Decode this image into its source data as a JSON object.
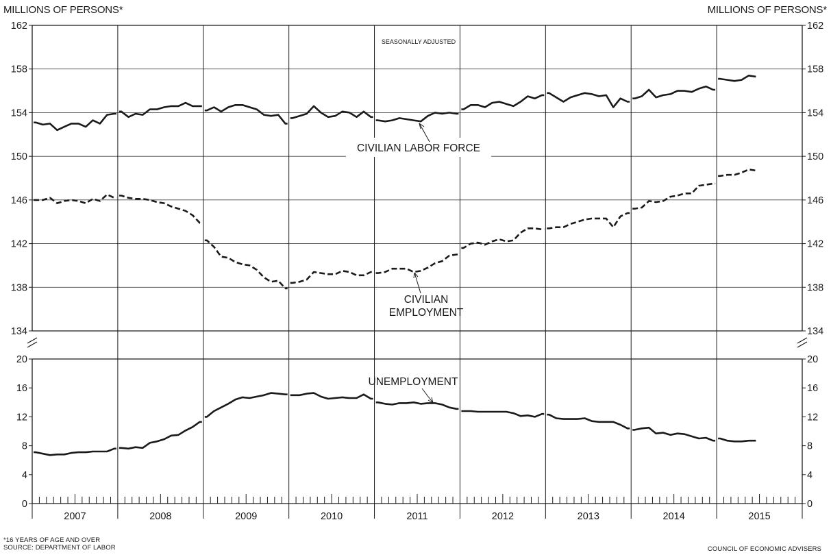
{
  "header": {
    "left_units": "MILLIONS OF PERSONS*",
    "right_units": "MILLIONS OF PERSONS*"
  },
  "footer": {
    "note": "*16 YEARS OF AGE AND OVER",
    "source": "SOURCE: DEPARTMENT OF LABOR",
    "credit": "COUNCIL OF ECONOMIC ADVISERS"
  },
  "chart_data": [
    {
      "type": "line",
      "annotation": "SEASONALLY ADJUSTED",
      "ylim": [
        134,
        162
      ],
      "yticks": [
        134,
        138,
        142,
        146,
        150,
        154,
        158,
        162
      ],
      "x_categories": [
        "2007",
        "2008",
        "2009",
        "2010",
        "2011",
        "2012",
        "2013",
        "2014",
        "2015"
      ],
      "grid": "horizontal",
      "series": [
        {
          "name": "CIVILIAN LABOR FORCE",
          "style": "solid",
          "x": [
            "2007-01",
            "2007-02",
            "2007-03",
            "2007-04",
            "2007-05",
            "2007-06",
            "2007-07",
            "2007-08",
            "2007-09",
            "2007-10",
            "2007-11",
            "2007-12",
            "2008-01",
            "2008-02",
            "2008-03",
            "2008-04",
            "2008-05",
            "2008-06",
            "2008-07",
            "2008-08",
            "2008-09",
            "2008-10",
            "2008-11",
            "2008-12",
            "2009-01",
            "2009-02",
            "2009-03",
            "2009-04",
            "2009-05",
            "2009-06",
            "2009-07",
            "2009-08",
            "2009-09",
            "2009-10",
            "2009-11",
            "2009-12",
            "2010-01",
            "2010-02",
            "2010-03",
            "2010-04",
            "2010-05",
            "2010-06",
            "2010-07",
            "2010-08",
            "2010-09",
            "2010-10",
            "2010-11",
            "2010-12",
            "2011-01",
            "2011-02",
            "2011-03",
            "2011-04",
            "2011-05",
            "2011-06",
            "2011-07",
            "2011-08",
            "2011-09",
            "2011-10",
            "2011-11",
            "2011-12",
            "2012-01",
            "2012-02",
            "2012-03",
            "2012-04",
            "2012-05",
            "2012-06",
            "2012-07",
            "2012-08",
            "2012-09",
            "2012-10",
            "2012-11",
            "2012-12",
            "2013-01",
            "2013-02",
            "2013-03",
            "2013-04",
            "2013-05",
            "2013-06",
            "2013-07",
            "2013-08",
            "2013-09",
            "2013-10",
            "2013-11",
            "2013-12",
            "2014-01",
            "2014-02",
            "2014-03",
            "2014-04",
            "2014-05",
            "2014-06",
            "2014-07",
            "2014-08",
            "2014-09",
            "2014-10",
            "2014-11",
            "2014-12",
            "2015-01",
            "2015-02",
            "2015-03",
            "2015-04",
            "2015-05",
            "2015-06"
          ],
          "values": [
            153.1,
            152.9,
            153.0,
            152.4,
            152.7,
            153.0,
            153.0,
            152.7,
            153.3,
            153.0,
            153.8,
            153.9,
            154.1,
            153.6,
            153.9,
            153.8,
            154.3,
            154.3,
            154.5,
            154.6,
            154.6,
            154.9,
            154.6,
            154.6,
            154.2,
            154.5,
            154.1,
            154.5,
            154.7,
            154.7,
            154.5,
            154.3,
            153.8,
            153.7,
            153.8,
            153.0,
            153.5,
            153.7,
            153.9,
            154.6,
            154.0,
            153.6,
            153.7,
            154.1,
            154.0,
            153.6,
            154.1,
            153.6,
            153.3,
            153.2,
            153.3,
            153.5,
            153.4,
            153.3,
            153.2,
            153.7,
            154.0,
            153.9,
            154.0,
            153.9,
            154.3,
            154.7,
            154.7,
            154.5,
            154.9,
            155.0,
            154.8,
            154.6,
            155.0,
            155.5,
            155.3,
            155.6,
            155.8,
            155.4,
            155.0,
            155.4,
            155.6,
            155.8,
            155.7,
            155.5,
            155.6,
            154.5,
            155.3,
            155.0,
            155.3,
            155.5,
            156.1,
            155.4,
            155.6,
            155.7,
            156.0,
            156.0,
            155.9,
            156.2,
            156.4,
            156.1,
            157.1,
            157.0,
            156.9,
            157.0,
            157.4,
            157.3
          ]
        },
        {
          "name": "CIVILIAN EMPLOYMENT",
          "style": "dashed",
          "x": [
            "2007-01",
            "2007-02",
            "2007-03",
            "2007-04",
            "2007-05",
            "2007-06",
            "2007-07",
            "2007-08",
            "2007-09",
            "2007-10",
            "2007-11",
            "2007-12",
            "2008-01",
            "2008-02",
            "2008-03",
            "2008-04",
            "2008-05",
            "2008-06",
            "2008-07",
            "2008-08",
            "2008-09",
            "2008-10",
            "2008-11",
            "2008-12",
            "2009-01",
            "2009-02",
            "2009-03",
            "2009-04",
            "2009-05",
            "2009-06",
            "2009-07",
            "2009-08",
            "2009-09",
            "2009-10",
            "2009-11",
            "2009-12",
            "2010-01",
            "2010-02",
            "2010-03",
            "2010-04",
            "2010-05",
            "2010-06",
            "2010-07",
            "2010-08",
            "2010-09",
            "2010-10",
            "2010-11",
            "2010-12",
            "2011-01",
            "2011-02",
            "2011-03",
            "2011-04",
            "2011-05",
            "2011-06",
            "2011-07",
            "2011-08",
            "2011-09",
            "2011-10",
            "2011-11",
            "2011-12",
            "2012-01",
            "2012-02",
            "2012-03",
            "2012-04",
            "2012-05",
            "2012-06",
            "2012-07",
            "2012-08",
            "2012-09",
            "2012-10",
            "2012-11",
            "2012-12",
            "2013-01",
            "2013-02",
            "2013-03",
            "2013-04",
            "2013-05",
            "2013-06",
            "2013-07",
            "2013-08",
            "2013-09",
            "2013-10",
            "2013-11",
            "2013-12",
            "2014-01",
            "2014-02",
            "2014-03",
            "2014-04",
            "2014-05",
            "2014-06",
            "2014-07",
            "2014-08",
            "2014-09",
            "2014-10",
            "2014-11",
            "2014-12",
            "2015-01",
            "2015-02",
            "2015-03",
            "2015-04",
            "2015-05",
            "2015-06"
          ],
          "values": [
            146.0,
            146.0,
            146.2,
            145.7,
            145.9,
            146.0,
            145.9,
            145.7,
            146.1,
            145.9,
            146.5,
            146.2,
            146.4,
            146.2,
            146.1,
            146.1,
            146.0,
            145.8,
            145.7,
            145.4,
            145.2,
            145.0,
            144.6,
            143.9,
            142.3,
            141.7,
            140.8,
            140.7,
            140.3,
            140.1,
            140.0,
            139.6,
            138.9,
            138.5,
            138.6,
            137.9,
            138.4,
            138.5,
            138.7,
            139.4,
            139.3,
            139.2,
            139.2,
            139.5,
            139.4,
            139.1,
            139.1,
            139.4,
            139.3,
            139.4,
            139.7,
            139.7,
            139.7,
            139.4,
            139.5,
            139.8,
            140.2,
            140.4,
            140.9,
            141.0,
            141.6,
            142.0,
            142.1,
            141.9,
            142.2,
            142.4,
            142.2,
            142.3,
            143.0,
            143.4,
            143.4,
            143.3,
            143.4,
            143.5,
            143.5,
            143.8,
            144.0,
            144.2,
            144.3,
            144.3,
            144.3,
            143.5,
            144.5,
            144.8,
            145.2,
            145.3,
            145.9,
            145.8,
            145.9,
            146.3,
            146.4,
            146.6,
            146.6,
            147.3,
            147.4,
            147.5,
            148.2,
            148.3,
            148.3,
            148.5,
            148.8,
            148.7
          ]
        }
      ]
    },
    {
      "type": "line",
      "ylim": [
        0,
        20
      ],
      "yticks": [
        0,
        4,
        8,
        12,
        16,
        20
      ],
      "x_categories": [
        "2007",
        "2008",
        "2009",
        "2010",
        "2011",
        "2012",
        "2013",
        "2014",
        "2015"
      ],
      "series": [
        {
          "name": "UNEMPLOYMENT",
          "style": "solid",
          "x": [
            "2007-01",
            "2007-02",
            "2007-03",
            "2007-04",
            "2007-05",
            "2007-06",
            "2007-07",
            "2007-08",
            "2007-09",
            "2007-10",
            "2007-11",
            "2007-12",
            "2008-01",
            "2008-02",
            "2008-03",
            "2008-04",
            "2008-05",
            "2008-06",
            "2008-07",
            "2008-08",
            "2008-09",
            "2008-10",
            "2008-11",
            "2008-12",
            "2009-01",
            "2009-02",
            "2009-03",
            "2009-04",
            "2009-05",
            "2009-06",
            "2009-07",
            "2009-08",
            "2009-09",
            "2009-10",
            "2009-11",
            "2009-12",
            "2010-01",
            "2010-02",
            "2010-03",
            "2010-04",
            "2010-05",
            "2010-06",
            "2010-07",
            "2010-08",
            "2010-09",
            "2010-10",
            "2010-11",
            "2010-12",
            "2011-01",
            "2011-02",
            "2011-03",
            "2011-04",
            "2011-05",
            "2011-06",
            "2011-07",
            "2011-08",
            "2011-09",
            "2011-10",
            "2011-11",
            "2011-12",
            "2012-01",
            "2012-02",
            "2012-03",
            "2012-04",
            "2012-05",
            "2012-06",
            "2012-07",
            "2012-08",
            "2012-09",
            "2012-10",
            "2012-11",
            "2012-12",
            "2013-01",
            "2013-02",
            "2013-03",
            "2013-04",
            "2013-05",
            "2013-06",
            "2013-07",
            "2013-08",
            "2013-09",
            "2013-10",
            "2013-11",
            "2013-12",
            "2014-01",
            "2014-02",
            "2014-03",
            "2014-04",
            "2014-05",
            "2014-06",
            "2014-07",
            "2014-08",
            "2014-09",
            "2014-10",
            "2014-11",
            "2014-12",
            "2015-01",
            "2015-02",
            "2015-03",
            "2015-04",
            "2015-05",
            "2015-06"
          ],
          "values": [
            7.1,
            6.9,
            6.7,
            6.8,
            6.8,
            7.0,
            7.1,
            7.1,
            7.2,
            7.2,
            7.2,
            7.6,
            7.7,
            7.6,
            7.8,
            7.7,
            8.4,
            8.6,
            8.9,
            9.4,
            9.5,
            10.1,
            10.6,
            11.3,
            12.0,
            12.8,
            13.3,
            13.8,
            14.4,
            14.7,
            14.6,
            14.8,
            15.0,
            15.3,
            15.2,
            15.1,
            15.0,
            15.0,
            15.2,
            15.3,
            14.8,
            14.5,
            14.6,
            14.7,
            14.6,
            14.6,
            15.1,
            14.5,
            14.0,
            13.8,
            13.7,
            13.9,
            13.9,
            14.0,
            13.8,
            13.9,
            13.9,
            13.7,
            13.3,
            13.1,
            12.8,
            12.8,
            12.7,
            12.7,
            12.7,
            12.7,
            12.7,
            12.5,
            12.1,
            12.2,
            12.0,
            12.4,
            12.3,
            11.8,
            11.7,
            11.7,
            11.7,
            11.8,
            11.4,
            11.3,
            11.3,
            11.3,
            10.9,
            10.4,
            10.2,
            10.4,
            10.5,
            9.7,
            9.8,
            9.5,
            9.7,
            9.6,
            9.3,
            9.0,
            9.1,
            8.7,
            9.0,
            8.7,
            8.6,
            8.6,
            8.7,
            8.7
          ]
        }
      ]
    }
  ]
}
